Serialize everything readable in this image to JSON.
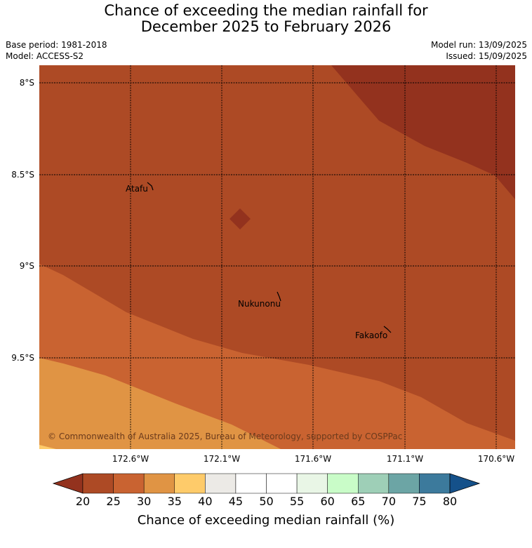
{
  "header": {
    "title_line1": "Chance of exceeding the median rainfall for",
    "title_line2": "December 2025 to February 2026",
    "base_period": "Base period: 1981-2018",
    "model": "Model: ACCESS-S2",
    "model_run": "Model run: 13/09/2025",
    "issued": "Issued: 15/09/2025"
  },
  "map": {
    "latitude_labels": [
      "8°S",
      "8.5°S",
      "9°S",
      "9.5°S"
    ],
    "longitude_labels": [
      "172.6°W",
      "172.1°W",
      "171.6°W",
      "171.1°W",
      "170.6°W"
    ],
    "places": [
      "Atafu",
      "Nukunonu",
      "Fakaofo"
    ],
    "credit": "© Commonwealth of Australia 2025, Bureau of Meteorology, supported by COSPPac",
    "colors": {
      "under_20": "#93321e",
      "20_25": "#ad4a25",
      "25_30": "#c96331",
      "30_35": "#e09444",
      "35_40": "#fecb6a"
    }
  },
  "colorbar": {
    "ticks": [
      "20",
      "25",
      "30",
      "35",
      "40",
      "45",
      "50",
      "55",
      "60",
      "65",
      "70",
      "75",
      "80"
    ],
    "label": "Chance of exceeding median rainfall (%)",
    "colors": [
      "#ad4a25",
      "#c96331",
      "#e09444",
      "#fecb6a",
      "#eceae6",
      "#ffffff",
      "#ffffff",
      "#e9f6e6",
      "#c9fcc8",
      "#9ecfb7",
      "#6ca5a5",
      "#3c7a9c"
    ],
    "under_color": "#93321e",
    "over_color": "#15518a"
  }
}
